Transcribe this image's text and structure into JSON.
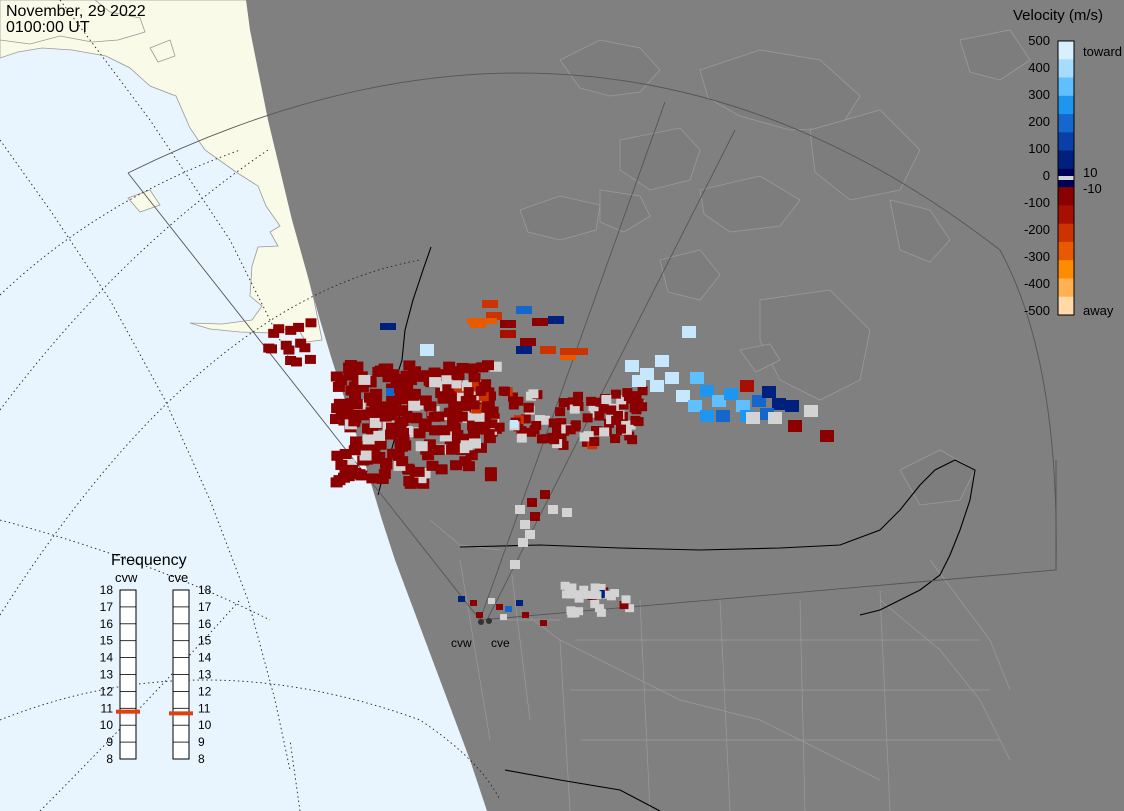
{
  "header": {
    "date": "November, 29 2022",
    "time": "0100:00 UT"
  },
  "colors": {
    "ocean": "#e8f5ff",
    "land_sunlit": "#fafae8",
    "night_overlay": "#808080",
    "night_land": "#7d7d7d",
    "coast": "#9a9a9a",
    "fov": "#555555",
    "border": "#000000",
    "ground_scatter": "#d3d3d3"
  },
  "velocity_scale": {
    "title": "Velocity (m/s)",
    "ticks": [
      "500",
      "400",
      "300",
      "200",
      "100",
      "10",
      "0",
      "-10",
      "-100",
      "-200",
      "-300",
      "-400",
      "-500"
    ],
    "toward_label": "toward",
    "away_label": "away",
    "colors": [
      "#d8efff",
      "#a6dcff",
      "#60bfff",
      "#1e96f0",
      "#1467cc",
      "#0a3fa8",
      "#00207e",
      "#000058",
      "#8a0000",
      "#a80f00",
      "#cc3300",
      "#e85a00",
      "#ff8c00",
      "#ffb050",
      "#ffd9a8"
    ]
  },
  "radars": [
    {
      "id": "cvw",
      "label": "cvw"
    },
    {
      "id": "cve",
      "label": "cve"
    }
  ],
  "frequency_panel": {
    "title": "Frequency",
    "columns": [
      {
        "label": "cvw",
        "selected_mhz": 10.8
      },
      {
        "label": "cve",
        "selected_mhz": 10.7
      }
    ],
    "ticks": [
      "18",
      "17",
      "16",
      "15",
      "14",
      "13",
      "12",
      "11",
      "10",
      "9",
      "8"
    ],
    "min": 8,
    "max": 18,
    "marker_color": "#e04010"
  }
}
